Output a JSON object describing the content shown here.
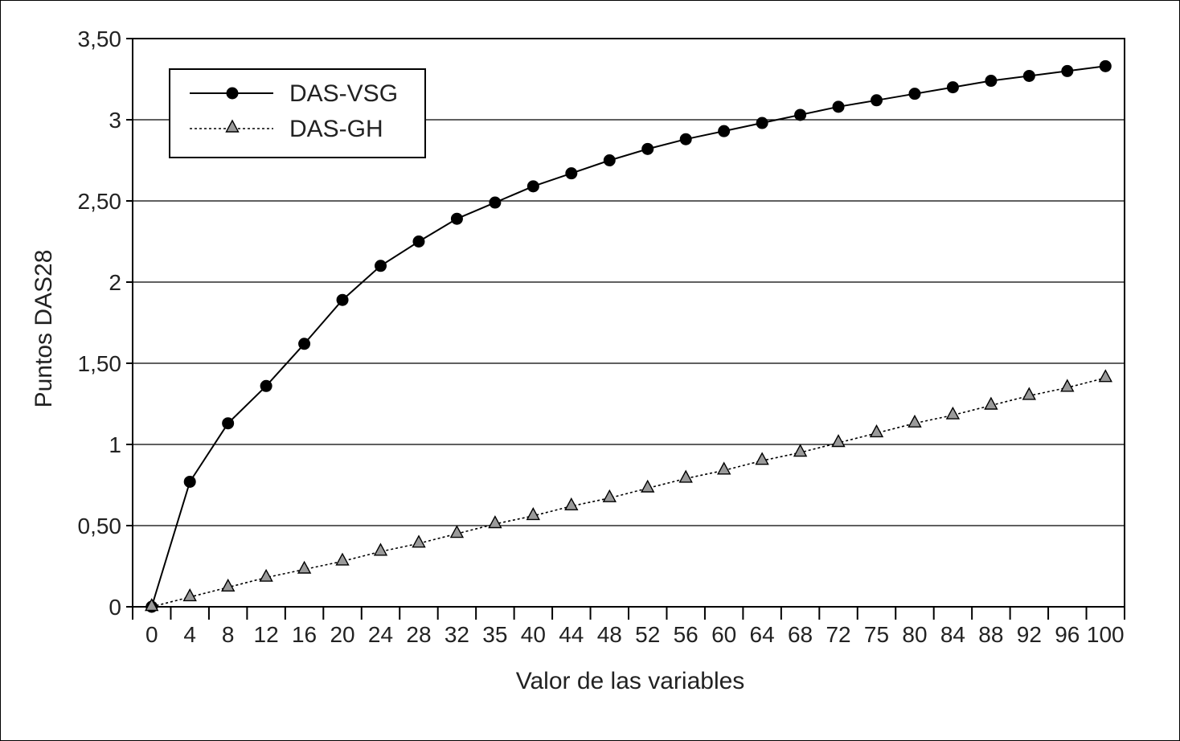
{
  "chart_data": {
    "type": "line",
    "xlabel": "Valor de las variables",
    "ylabel": "Puntos DAS28",
    "x_tick_labels": [
      "0",
      "4",
      "8",
      "12",
      "16",
      "20",
      "24",
      "28",
      "32",
      "35",
      "40",
      "44",
      "48",
      "52",
      "56",
      "60",
      "64",
      "68",
      "72",
      "75",
      "80",
      "84",
      "88",
      "92",
      "96",
      "100"
    ],
    "y_ticks": [
      0,
      0.5,
      1,
      1.5,
      2,
      2.5,
      3,
      3.5
    ],
    "y_tick_labels": [
      "0",
      "0,50",
      "1",
      "1,50",
      "2",
      "2,50",
      "3",
      "3,50"
    ],
    "ylim": [
      0,
      3.5
    ],
    "grid": "horizontal",
    "legend_position": "top-left",
    "series": [
      {
        "name": "DAS-VSG",
        "marker": "circle",
        "line_style": "solid",
        "color": "#000000",
        "values": [
          0,
          0.77,
          1.13,
          1.36,
          1.62,
          1.89,
          2.1,
          2.25,
          2.39,
          2.49,
          2.59,
          2.67,
          2.75,
          2.82,
          2.88,
          2.93,
          2.98,
          3.03,
          3.08,
          3.12,
          3.16,
          3.2,
          3.24,
          3.27,
          3.3,
          3.33
        ]
      },
      {
        "name": "DAS-GH",
        "marker": "triangle",
        "line_style": "dotted",
        "color": "#9a9a9a",
        "values": [
          0,
          0.06,
          0.12,
          0.18,
          0.23,
          0.28,
          0.34,
          0.39,
          0.45,
          0.51,
          0.56,
          0.62,
          0.67,
          0.73,
          0.79,
          0.84,
          0.9,
          0.95,
          1.01,
          1.07,
          1.13,
          1.18,
          1.24,
          1.3,
          1.35,
          1.41
        ]
      }
    ]
  }
}
